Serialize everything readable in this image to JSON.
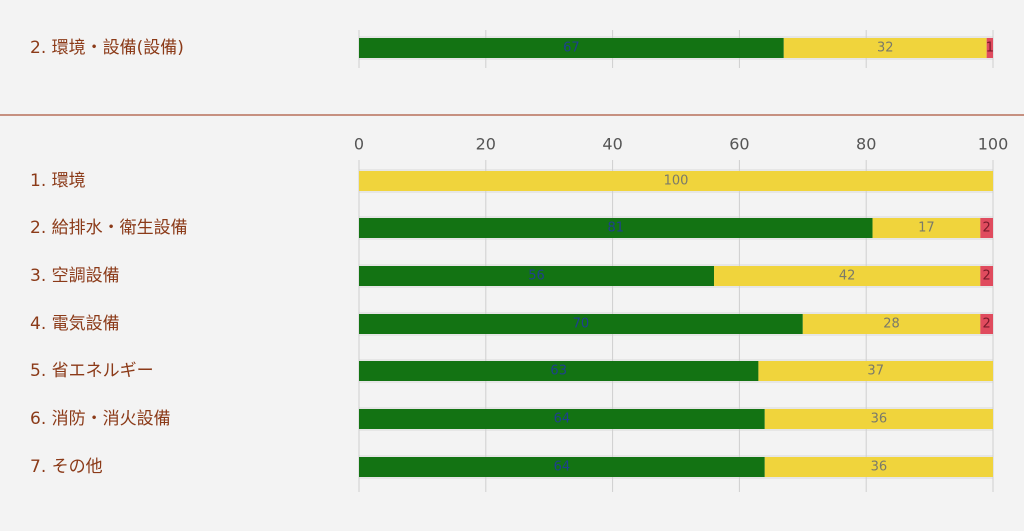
{
  "chart_data": [
    {
      "type": "stacked-bar-horizontal",
      "categories": [
        "2. 環境・設備(設備)"
      ],
      "series": [
        {
          "color": "#137313",
          "values": [
            67
          ]
        },
        {
          "color": "#f0d43c",
          "values": [
            32
          ]
        },
        {
          "color": "#e04b5e",
          "values": [
            1
          ]
        }
      ],
      "xlim": [
        0,
        100
      ]
    },
    {
      "type": "stacked-bar-horizontal",
      "categories": [
        "1. 環境",
        "2. 給排水・衛生設備",
        "3. 空調設備",
        "4. 電気設備",
        "5. 省エネルギー",
        "6. 消防・消火設備",
        "7. その他"
      ],
      "series": [
        {
          "color": "#137313",
          "values": [
            0,
            81,
            56,
            70,
            63,
            64,
            64
          ]
        },
        {
          "color": "#f0d43c",
          "values": [
            100,
            17,
            42,
            28,
            37,
            36,
            36
          ]
        },
        {
          "color": "#e04b5e",
          "values": [
            0,
            2,
            2,
            2,
            0,
            0,
            0
          ]
        }
      ],
      "xlim": [
        0,
        100
      ],
      "xticks": [
        0,
        20,
        40,
        60,
        80,
        100
      ],
      "grid": true
    }
  ]
}
